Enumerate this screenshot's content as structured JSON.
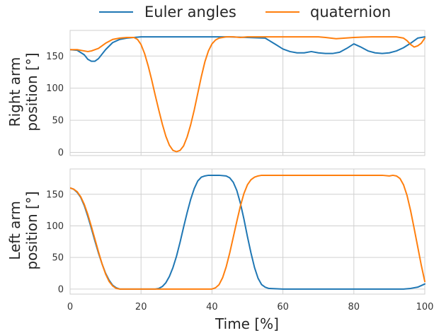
{
  "chart_data": [
    {
      "type": "line",
      "ylabel": [
        "Right arm",
        "position [°]"
      ],
      "xlabel": "",
      "xlim": [
        0,
        100
      ],
      "ylim": [
        -5,
        190
      ],
      "xticks": [
        0,
        20,
        40,
        60,
        80,
        100
      ],
      "yticks": [
        0,
        50,
        100,
        150
      ],
      "show_xtick_labels": false,
      "grid": true,
      "series": [
        {
          "name": "Euler angles",
          "color": "#1f77b4",
          "x": [
            0,
            2,
            4,
            5,
            6,
            7,
            8,
            10,
            12,
            14,
            16,
            18,
            20,
            25,
            30,
            35,
            40,
            45,
            50,
            55,
            58,
            60,
            62,
            64,
            66,
            68,
            70,
            72,
            74,
            76,
            78,
            80,
            82,
            84,
            86,
            88,
            90,
            92,
            94,
            96,
            98,
            100
          ],
          "y": [
            160,
            159,
            152,
            145,
            142,
            142,
            146,
            160,
            171,
            176,
            178,
            179,
            180,
            180,
            180,
            180,
            180,
            180,
            179,
            178,
            168,
            161,
            157,
            155,
            155,
            157,
            155,
            154,
            154,
            156,
            162,
            169,
            164,
            158,
            155,
            154,
            155,
            158,
            163,
            170,
            178,
            180
          ]
        },
        {
          "name": "quaternion",
          "color": "#ff7f0e",
          "x": [
            0,
            2,
            4,
            5,
            6,
            8,
            10,
            12,
            14,
            16,
            18,
            19,
            20,
            21,
            22,
            23,
            24,
            25,
            26,
            27,
            28,
            29,
            30,
            31,
            32,
            33,
            34,
            35,
            36,
            37,
            38,
            39,
            40,
            41,
            42,
            43,
            44,
            46,
            48,
            50,
            55,
            60,
            65,
            70,
            72,
            75,
            80,
            85,
            90,
            92,
            94,
            95,
            96,
            97,
            98,
            99,
            100
          ],
          "y": [
            160,
            160,
            158,
            157,
            158,
            162,
            170,
            176,
            178,
            179,
            179,
            176,
            168,
            154,
            135,
            113,
            89,
            66,
            44,
            25,
            11,
            3,
            1,
            3,
            10,
            24,
            43,
            66,
            92,
            118,
            141,
            158,
            169,
            175,
            178,
            179,
            180,
            180,
            179,
            180,
            180,
            180,
            180,
            180,
            179,
            177,
            179,
            180,
            180,
            180,
            178,
            174,
            168,
            164,
            166,
            170,
            178
          ]
        }
      ]
    },
    {
      "type": "line",
      "ylabel": [
        "Left arm",
        "position [°]"
      ],
      "xlabel": "Time [%]",
      "xlim": [
        0,
        100
      ],
      "ylim": [
        -8,
        190
      ],
      "xticks": [
        0,
        20,
        40,
        60,
        80,
        100
      ],
      "yticks": [
        0,
        50,
        100,
        150
      ],
      "show_xtick_labels": true,
      "grid": true,
      "series": [
        {
          "name": "Euler angles",
          "color": "#1f77b4",
          "x": [
            0,
            1,
            2,
            3,
            4,
            5,
            6,
            7,
            8,
            9,
            10,
            11,
            12,
            13,
            14,
            15,
            20,
            24,
            25,
            26,
            27,
            28,
            29,
            30,
            31,
            32,
            33,
            34,
            35,
            36,
            37,
            38,
            39,
            40,
            42,
            44,
            45,
            46,
            47,
            48,
            49,
            50,
            51,
            52,
            53,
            54,
            55,
            56,
            60,
            70,
            80,
            90,
            92,
            94,
            96,
            98,
            100
          ],
          "y": [
            160,
            158,
            153,
            145,
            132,
            115,
            96,
            76,
            57,
            40,
            25,
            14,
            6,
            2,
            0,
            0,
            0,
            0,
            1,
            4,
            10,
            20,
            34,
            52,
            74,
            98,
            121,
            142,
            159,
            171,
            177,
            179,
            180,
            180,
            180,
            179,
            176,
            169,
            156,
            136,
            111,
            83,
            57,
            34,
            17,
            7,
            3,
            1,
            0,
            0,
            0,
            0,
            0,
            0,
            1,
            3,
            8
          ]
        },
        {
          "name": "quaternion",
          "color": "#ff7f0e",
          "x": [
            0,
            1,
            2,
            3,
            4,
            5,
            6,
            7,
            8,
            9,
            10,
            11,
            12,
            13,
            14,
            15,
            20,
            30,
            40,
            41,
            42,
            43,
            44,
            45,
            46,
            47,
            48,
            49,
            50,
            51,
            52,
            53,
            54,
            55,
            56,
            60,
            70,
            80,
            88,
            90,
            91,
            92,
            93,
            94,
            95,
            96,
            97,
            98,
            99,
            100
          ],
          "y": [
            160,
            158,
            154,
            146,
            134,
            118,
            99,
            79,
            59,
            40,
            24,
            12,
            5,
            1,
            0,
            0,
            0,
            0,
            0,
            2,
            7,
            18,
            35,
            57,
            82,
            107,
            131,
            151,
            165,
            173,
            177,
            179,
            180,
            180,
            180,
            180,
            180,
            180,
            180,
            179,
            180,
            179,
            175,
            165,
            148,
            124,
            96,
            67,
            38,
            12
          ]
        }
      ]
    }
  ]
}
